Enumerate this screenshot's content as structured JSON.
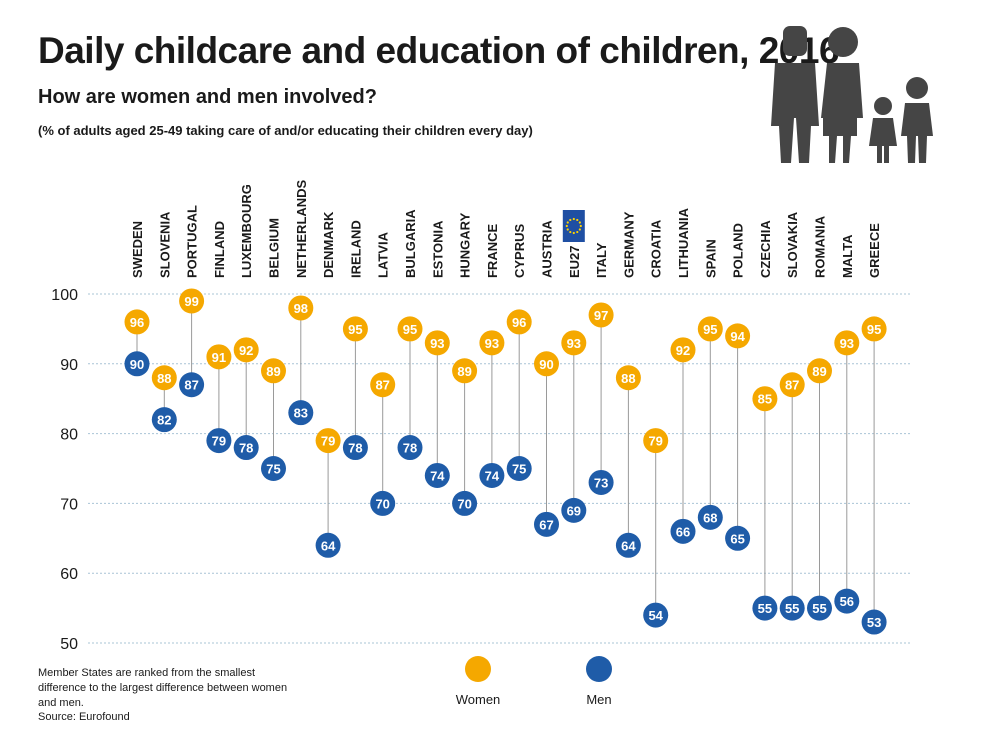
{
  "header": {
    "title": "Daily childcare and education of children, 2016",
    "subtitle": "How are women and men involved?",
    "note": "(% of adults aged 25-49 taking care of and/or educating their children every day)"
  },
  "footer": {
    "ranking_note": "Member States are ranked from the smallest difference to the largest difference between women and men.",
    "source": "Source: Eurofound"
  },
  "colors": {
    "women": "#f5a800",
    "men": "#1f5ca8",
    "connector": "#9a9a9a",
    "gridline": "#a9c4d6",
    "eu_flag": "#1f4fa3",
    "figures": "#454545"
  },
  "decoration": {
    "icon": "family-silhouette-icon"
  },
  "chart_data": {
    "type": "dot-plot",
    "title": "Daily childcare and education of children, 2016",
    "ylim": [
      50,
      100
    ],
    "yticks": [
      50,
      60,
      70,
      80,
      90,
      100
    ],
    "grid": true,
    "legend_position": "bottom-center",
    "categories": [
      "SWEDEN",
      "SLOVENIA",
      "PORTUGAL",
      "FINLAND",
      "LUXEMBOURG",
      "BELGIUM",
      "NETHERLANDS",
      "DENMARK",
      "IRELAND",
      "LATVIA",
      "BULGARIA",
      "ESTONIA",
      "HUNGARY",
      "FRANCE",
      "CYPRUS",
      "AUSTRIA",
      "EU27",
      "ITALY",
      "GERMANY",
      "CROATIA",
      "LITHUANIA",
      "SPAIN",
      "POLAND",
      "CZECHIA",
      "SLOVAKIA",
      "ROMANIA",
      "MALTA",
      "GREECE"
    ],
    "series": [
      {
        "name": "Women",
        "values": [
          96,
          88,
          99,
          91,
          92,
          89,
          98,
          79,
          95,
          87,
          95,
          93,
          89,
          93,
          96,
          90,
          93,
          97,
          88,
          79,
          92,
          95,
          94,
          85,
          87,
          89,
          93,
          95
        ]
      },
      {
        "name": "Men",
        "values": [
          90,
          82,
          87,
          79,
          78,
          75,
          83,
          64,
          78,
          70,
          78,
          74,
          70,
          74,
          75,
          67,
          69,
          73,
          64,
          54,
          66,
          68,
          65,
          55,
          55,
          55,
          56,
          53
        ]
      }
    ]
  }
}
